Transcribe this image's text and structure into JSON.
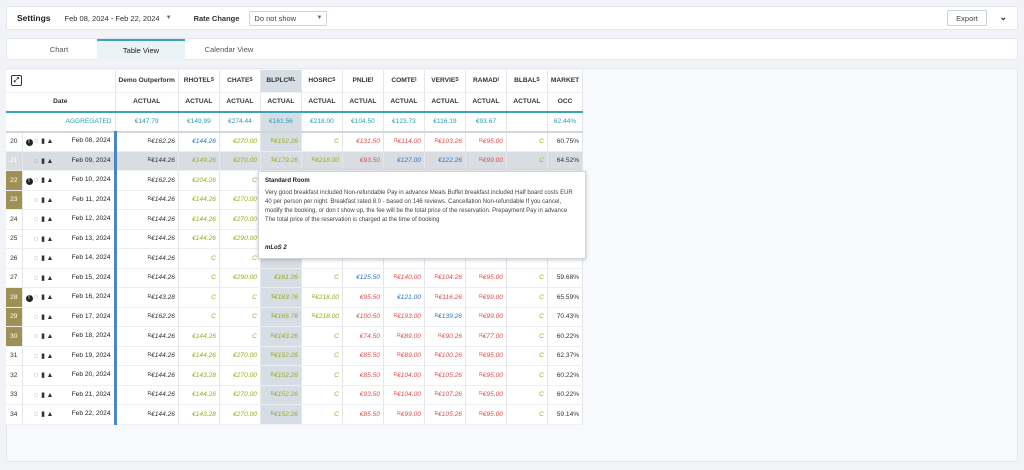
{
  "topbar": {
    "settings": "Settings",
    "dates": "Feb 08, 2024 - Feb 22, 2024",
    "rate_label": "Rate Change",
    "rate_value": "Do not show",
    "export": "Export"
  },
  "tabs": [
    "Chart",
    "Table View",
    "Calendar View"
  ],
  "cols": [
    {
      "name": "Demo Outperform",
      "sup": "",
      "sub": "ACTUAL"
    },
    {
      "name": "RHOTEL",
      "sup": "S",
      "sub": "ACTUAL"
    },
    {
      "name": "CHATE",
      "sup": "S",
      "sub": "ACTUAL"
    },
    {
      "name": "BLPLC",
      "sup": "ML",
      "sub": "ACTUAL"
    },
    {
      "name": "HOSRC",
      "sup": "S",
      "sub": "ACTUAL"
    },
    {
      "name": "PNLIE",
      "sup": "I",
      "sub": "ACTUAL"
    },
    {
      "name": "COMTE",
      "sup": "I",
      "sub": "ACTUAL"
    },
    {
      "name": "VERVIE",
      "sup": "S",
      "sub": "ACTUAL"
    },
    {
      "name": "RAMAD",
      "sup": "I",
      "sub": "ACTUAL"
    },
    {
      "name": "BLBAL",
      "sup": "S",
      "sub": "ACTUAL"
    },
    {
      "name": "MARKET",
      "sup": "",
      "sub": "OCC"
    }
  ],
  "date_header": "Date",
  "aggregated": {
    "label": "AGGREGATED",
    "values": [
      "€147.79",
      "€149.99",
      "€274.44",
      "€161.56",
      "€218.00",
      "€104.50",
      "€123.73",
      "€116.19",
      "€93.67",
      "",
      "62.44%"
    ]
  },
  "rows": [
    {
      "n": "20",
      "date": "Feb 08, 2024",
      "info": true,
      "cells": [
        [
          "R",
          "€162.26",
          "blk"
        ],
        [
          "",
          "€144.26",
          "blue"
        ],
        [
          "",
          "€270.00",
          "grn"
        ],
        [
          "R",
          "€152.26",
          "grn"
        ],
        [
          "",
          "C",
          "c"
        ],
        [
          "",
          "€131.50",
          "red"
        ],
        [
          "R",
          "€114.00",
          "red"
        ],
        [
          "R",
          "€103.26",
          "red"
        ],
        [
          "R",
          "€95.00",
          "red"
        ],
        [
          "",
          "C",
          "c"
        ],
        [
          "",
          "60.75%",
          "blk"
        ]
      ]
    },
    {
      "n": "21",
      "date": "Feb 09, 2024",
      "hl": true,
      "wk": true,
      "cells": [
        [
          "R",
          "€144.26",
          "blk"
        ],
        [
          "",
          "€149.26",
          "grn"
        ],
        [
          "",
          "€270.00",
          "grn"
        ],
        [
          "$",
          "€179.26",
          "grn"
        ],
        [
          "R",
          "€218.00",
          "grn"
        ],
        [
          "",
          "€93.50",
          "red"
        ],
        [
          "",
          "€127.00",
          "blue"
        ],
        [
          "",
          "€122.26",
          "blue"
        ],
        [
          "R",
          "€99.00",
          "red"
        ],
        [
          "",
          "C",
          "c"
        ],
        [
          "",
          "64.52%",
          "blk"
        ]
      ]
    },
    {
      "n": "22",
      "date": "Feb 10, 2024",
      "info": true,
      "wk": true,
      "cells": [
        [
          "R",
          "€162.26",
          "blk"
        ],
        [
          "",
          "€204.26",
          "grn"
        ],
        [
          "",
          "C",
          "c"
        ],
        [
          "",
          "",
          ""
        ],
        [
          "",
          "",
          ""
        ],
        [
          "",
          "",
          ""
        ],
        [
          "",
          "",
          ""
        ],
        [
          "",
          "",
          ""
        ],
        [
          "",
          "",
          ""
        ],
        [
          "",
          "",
          ""
        ],
        [
          "",
          "",
          ""
        ]
      ]
    },
    {
      "n": "23",
      "date": "Feb 11, 2024",
      "wk": true,
      "cells": [
        [
          "R",
          "€144.26",
          "blk"
        ],
        [
          "",
          "€144.26",
          "grn"
        ],
        [
          "",
          "€270.00",
          "grn"
        ],
        [
          "",
          "",
          ""
        ],
        [
          "",
          "",
          ""
        ],
        [
          "",
          "",
          ""
        ],
        [
          "",
          "",
          ""
        ],
        [
          "",
          "",
          ""
        ],
        [
          "",
          "",
          ""
        ],
        [
          "",
          "",
          ""
        ],
        [
          "",
          "",
          ""
        ]
      ]
    },
    {
      "n": "24",
      "date": "Feb 12, 2024",
      "cells": [
        [
          "R",
          "€144.26",
          "blk"
        ],
        [
          "",
          "€144.26",
          "grn"
        ],
        [
          "",
          "€270.00",
          "grn"
        ],
        [
          "",
          "",
          ""
        ],
        [
          "",
          "",
          ""
        ],
        [
          "",
          "",
          ""
        ],
        [
          "",
          "",
          ""
        ],
        [
          "",
          "",
          ""
        ],
        [
          "",
          "",
          ""
        ],
        [
          "",
          "",
          ""
        ],
        [
          "",
          "",
          ""
        ]
      ]
    },
    {
      "n": "25",
      "date": "Feb 13, 2024",
      "cells": [
        [
          "R",
          "€144.26",
          "blk"
        ],
        [
          "",
          "€144.26",
          "grn"
        ],
        [
          "",
          "€290.00",
          "grn"
        ],
        [
          "",
          "",
          ""
        ],
        [
          "",
          "",
          ""
        ],
        [
          "",
          "",
          ""
        ],
        [
          "",
          "",
          ""
        ],
        [
          "",
          "",
          ""
        ],
        [
          "",
          "",
          ""
        ],
        [
          "",
          "",
          ""
        ],
        [
          "",
          "",
          ""
        ]
      ]
    },
    {
      "n": "26",
      "date": "Feb 14, 2024",
      "cells": [
        [
          "R",
          "€144.26",
          "blk"
        ],
        [
          "",
          "C",
          "c"
        ],
        [
          "",
          "C",
          "c"
        ],
        [
          "",
          "",
          ""
        ],
        [
          "",
          "",
          ""
        ],
        [
          "",
          "",
          ""
        ],
        [
          "",
          "",
          ""
        ],
        [
          "",
          "",
          ""
        ],
        [
          "",
          "",
          ""
        ],
        [
          "",
          "",
          ""
        ],
        [
          "",
          "",
          ""
        ]
      ]
    },
    {
      "n": "27",
      "date": "Feb 15, 2024",
      "cells": [
        [
          "R",
          "€144.26",
          "blk"
        ],
        [
          "",
          "C",
          "c"
        ],
        [
          "",
          "€290.00",
          "grn"
        ],
        [
          "",
          "€161.26",
          "grn"
        ],
        [
          "",
          "C",
          "c"
        ],
        [
          "",
          "€125.50",
          "blue"
        ],
        [
          "R",
          "€140.00",
          "red"
        ],
        [
          "R",
          "€104.26",
          "red"
        ],
        [
          "R",
          "€95.00",
          "red"
        ],
        [
          "",
          "C",
          "c"
        ],
        [
          "",
          "59.68%",
          "blk"
        ]
      ]
    },
    {
      "n": "28",
      "date": "Feb 16, 2024",
      "info": true,
      "wk": true,
      "cells": [
        [
          "R",
          "€143.28",
          "blk"
        ],
        [
          "",
          "C",
          "c"
        ],
        [
          "",
          "C",
          "c"
        ],
        [
          "$",
          "€183.76",
          "grn"
        ],
        [
          "R",
          "€218.00",
          "grn"
        ],
        [
          "",
          "€95.50",
          "red"
        ],
        [
          "",
          "€121.00",
          "blue"
        ],
        [
          "R",
          "€116.26",
          "red"
        ],
        [
          "R",
          "€99.00",
          "red"
        ],
        [
          "",
          "C",
          "c"
        ],
        [
          "",
          "65.59%",
          "blk"
        ]
      ]
    },
    {
      "n": "29",
      "date": "Feb 17, 2024",
      "wk": true,
      "cells": [
        [
          "R",
          "€162.26",
          "blk"
        ],
        [
          "",
          "C",
          "c"
        ],
        [
          "",
          "C",
          "c"
        ],
        [
          "$",
          "€166.76",
          "grn"
        ],
        [
          "R",
          "€218.00",
          "grn"
        ],
        [
          "",
          "€100.50",
          "red"
        ],
        [
          "R",
          "€193.00",
          "red"
        ],
        [
          "R",
          "€139.26",
          "blue"
        ],
        [
          "R",
          "€99.00",
          "red"
        ],
        [
          "",
          "C",
          "c"
        ],
        [
          "",
          "70.43%",
          "blk"
        ]
      ]
    },
    {
      "n": "30",
      "date": "Feb 18, 2024",
      "wk": true,
      "cells": [
        [
          "R",
          "€144.26",
          "blk"
        ],
        [
          "",
          "€144.26",
          "grn"
        ],
        [
          "",
          "C",
          "c"
        ],
        [
          "R",
          "€143.26",
          "grn"
        ],
        [
          "",
          "C",
          "c"
        ],
        [
          "",
          "€74.50",
          "red"
        ],
        [
          "R",
          "€89.00",
          "red"
        ],
        [
          "R",
          "€90.26",
          "red"
        ],
        [
          "R",
          "€77.00",
          "red"
        ],
        [
          "",
          "C",
          "c"
        ],
        [
          "",
          "60.22%",
          "blk"
        ]
      ]
    },
    {
      "n": "31",
      "date": "Feb 19, 2024",
      "cells": [
        [
          "R",
          "€144.26",
          "blk"
        ],
        [
          "",
          "€144.26",
          "grn"
        ],
        [
          "",
          "€270.00",
          "grn"
        ],
        [
          "R",
          "€152.26",
          "grn"
        ],
        [
          "",
          "C",
          "c"
        ],
        [
          "",
          "€85.50",
          "red"
        ],
        [
          "R",
          "€89.00",
          "red"
        ],
        [
          "R",
          "€100.26",
          "red"
        ],
        [
          "R",
          "€95.00",
          "red"
        ],
        [
          "",
          "C",
          "c"
        ],
        [
          "",
          "62.37%",
          "blk"
        ]
      ]
    },
    {
      "n": "32",
      "date": "Feb 20, 2024",
      "cells": [
        [
          "R",
          "€144.26",
          "blk"
        ],
        [
          "",
          "€143.28",
          "grn"
        ],
        [
          "",
          "€270.00",
          "grn"
        ],
        [
          "R",
          "€152.26",
          "grn"
        ],
        [
          "",
          "C",
          "c"
        ],
        [
          "",
          "€85.50",
          "red"
        ],
        [
          "R",
          "€104.00",
          "red"
        ],
        [
          "R",
          "€105.26",
          "red"
        ],
        [
          "R",
          "€95.00",
          "red"
        ],
        [
          "",
          "C",
          "c"
        ],
        [
          "",
          "60.22%",
          "blk"
        ]
      ]
    },
    {
      "n": "33",
      "date": "Feb 21, 2024",
      "cells": [
        [
          "R",
          "€144.26",
          "blk"
        ],
        [
          "",
          "€144.26",
          "grn"
        ],
        [
          "",
          "€270.00",
          "grn"
        ],
        [
          "R",
          "€152.26",
          "grn"
        ],
        [
          "",
          "C",
          "c"
        ],
        [
          "",
          "€93.50",
          "red"
        ],
        [
          "R",
          "€104.00",
          "red"
        ],
        [
          "R",
          "€107.26",
          "red"
        ],
        [
          "R",
          "€95.00",
          "red"
        ],
        [
          "",
          "C",
          "c"
        ],
        [
          "",
          "60.22%",
          "blk"
        ]
      ]
    },
    {
      "n": "34",
      "date": "Feb 22, 2024",
      "cells": [
        [
          "R",
          "€144.26",
          "blk"
        ],
        [
          "",
          "€143.28",
          "grn"
        ],
        [
          "",
          "€270.00",
          "grn"
        ],
        [
          "R",
          "€152.26",
          "grn"
        ],
        [
          "",
          "C",
          "c"
        ],
        [
          "",
          "€85.50",
          "red"
        ],
        [
          "R",
          "€99.00",
          "red"
        ],
        [
          "R",
          "€105.26",
          "red"
        ],
        [
          "R",
          "€95.00",
          "red"
        ],
        [
          "",
          "C",
          "c"
        ],
        [
          "",
          "59.14%",
          "blk"
        ]
      ]
    }
  ],
  "tooltip": {
    "title": "Standard Room",
    "body": "Very good breakfast included Non-refundable Pay in advance Meals Buffet breakfast included Half board costs EUR 40 per person per night. Breakfast rated 8.0 - based on 146 reviews. Cancellation Non-refundable If you cancel, modify the booking, or don t show up, the fee will be the total price of the reservation. Prepayment Pay in advance The total price of the reservation is charged at the time of booking",
    "los": "mLoS 2"
  }
}
